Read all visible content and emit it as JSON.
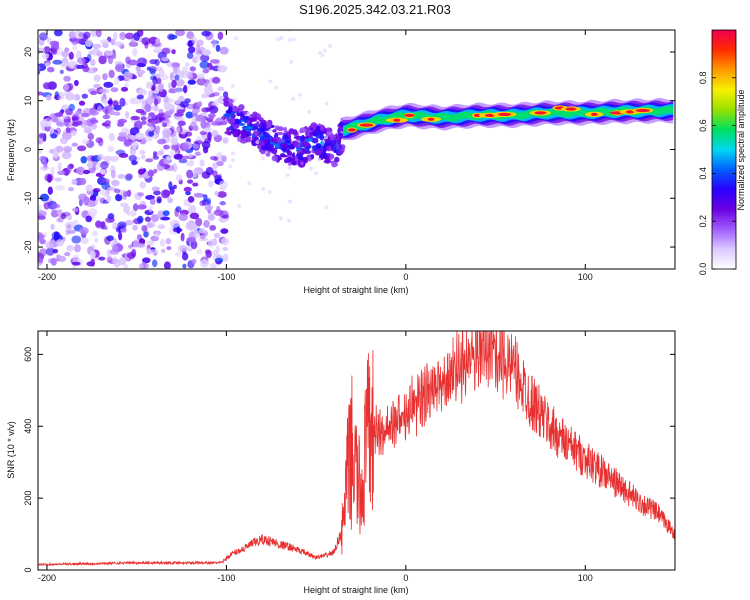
{
  "title": "S196.2025.342.03.21.R03",
  "chart_data": [
    {
      "type": "heatmap",
      "name": "spectrogram",
      "xlabel": "Height of straight line (km)",
      "ylabel": "Frequency (Hz)",
      "xlim": [
        -205,
        150
      ],
      "ylim": [
        -24.5,
        24.5
      ],
      "xticks": [
        -200,
        -100,
        0,
        100
      ],
      "yticks": [
        -20,
        -10,
        0,
        10,
        20
      ],
      "colorbar": {
        "label": "Normalized spectral amplitude",
        "range": [
          0,
          1
        ],
        "ticks": [
          0.0,
          0.2,
          0.4,
          0.6,
          0.8
        ],
        "colors": [
          "#ffffff",
          "#dcc8ff",
          "#a05cff",
          "#6a00e0",
          "#2a00ff",
          "#0060ff",
          "#00d8f0",
          "#00e060",
          "#9ae000",
          "#f8f000",
          "#ff9a00",
          "#ff2a00",
          "#f00050"
        ]
      },
      "features": [
        {
          "name": "noise_region",
          "x_range": [
            -205,
            -100
          ],
          "freq_range": [
            -24,
            24
          ],
          "amplitude": 0.15
        },
        {
          "name": "transition_band",
          "x": [
            -100,
            -90,
            -80,
            -70,
            -60,
            -50,
            -45,
            -40,
            -35
          ],
          "freq": [
            7,
            5,
            3,
            1,
            0,
            2,
            1,
            0,
            3
          ],
          "amplitude": 0.3
        },
        {
          "name": "main_band",
          "x": [
            -35,
            -25,
            -15,
            0,
            20,
            40,
            60,
            80,
            100,
            120,
            150
          ],
          "freq": [
            4,
            5,
            6,
            7,
            6.5,
            7,
            7,
            7.5,
            7.5,
            7.8,
            8
          ],
          "amplitude": 0.7
        }
      ]
    },
    {
      "type": "line",
      "name": "snr",
      "xlabel": "Height of straight line (km)",
      "ylabel": "SNR (10 * v/v)",
      "xlim": [
        -205,
        150
      ],
      "ylim": [
        0,
        665
      ],
      "xticks": [
        -200,
        -100,
        0,
        100
      ],
      "yticks": [
        0,
        200,
        400,
        600
      ],
      "color": "#e83030",
      "series": [
        {
          "name": "SNR envelope",
          "x": [
            -205,
            -150,
            -103,
            -97,
            -90,
            -85,
            -80,
            -75,
            -70,
            -65,
            -60,
            -55,
            -50,
            -45,
            -40,
            -35,
            -33,
            -30,
            -28,
            -25,
            -22,
            -20,
            -15,
            -10,
            -5,
            0,
            5,
            10,
            20,
            30,
            40,
            45,
            50,
            55,
            60,
            70,
            80,
            90,
            100,
            110,
            120,
            130,
            140,
            150
          ],
          "y": [
            15,
            20,
            20,
            45,
            60,
            75,
            85,
            80,
            70,
            65,
            55,
            45,
            35,
            40,
            50,
            120,
            250,
            330,
            280,
            200,
            350,
            390,
            380,
            390,
            420,
            440,
            460,
            480,
            520,
            570,
            600,
            630,
            610,
            580,
            560,
            470,
            400,
            350,
            310,
            270,
            230,
            190,
            160,
            100
          ]
        }
      ]
    }
  ]
}
